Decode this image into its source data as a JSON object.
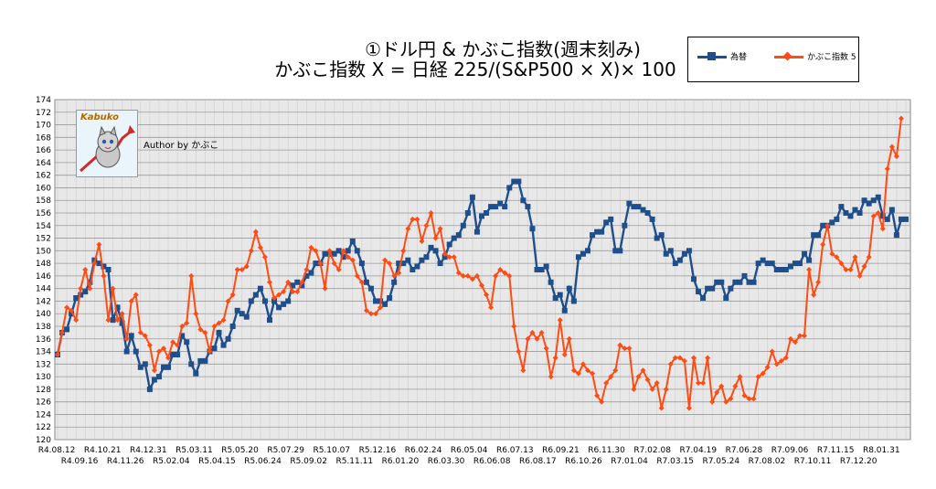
{
  "chart_data": {
    "type": "line",
    "title_line1": "①ドル円 & かぶこ指数(週末刻み)",
    "title_line2": "かぶこ指数 X = 日経 225/(S&P500 × X)× 100",
    "author": "Author by かぶこ",
    "logo_text": "Kabuko",
    "ylim": [
      120,
      174
    ],
    "ystep": 2,
    "grid": true,
    "legend_placement": "top-right",
    "colors": {
      "usdjpy": "#1f4e8c",
      "kabuko": "#ff4b14",
      "grid": "#b0b0b0",
      "plot_bg": "#e8e8e8"
    },
    "x_tick_labels_upper": [
      "R4.08.12",
      "R4.10.21",
      "R4.12.31",
      "R5.03.11",
      "R5.05.20",
      "R5.07.29",
      "R5.10.07",
      "R5.12.16",
      "R6.02.24",
      "R6.05.04",
      "R6.07.13",
      "R6.09.21",
      "R6.11.30",
      "R7.02.08",
      "R7.04.19",
      "R7.06.28",
      "R7.09.06",
      "R7.11.15",
      "R8.01.31"
    ],
    "x_tick_labels_lower": [
      "R4.09.16",
      "R4.11.26",
      "R5.02.04",
      "R5.04.15",
      "R5.06.24",
      "R5.09.02",
      "R5.11.11",
      "R6.01.20",
      "R6.03.30",
      "R6.06.08",
      "R6.08.17",
      "R6.10.26",
      "R7.01.04",
      "R7.03.15",
      "R7.05.24",
      "R7.08.02",
      "R7.10.11",
      "R7.12.20"
    ],
    "series": [
      {
        "name": "為替",
        "marker": "square",
        "values": [
          133.5,
          137,
          137.5,
          140,
          142.5,
          143,
          143.5,
          145,
          148.5,
          148,
          147.5,
          147,
          139,
          141,
          138.5,
          134,
          136.5,
          134,
          131.5,
          132,
          128,
          129.5,
          130,
          131.5,
          131.5,
          133.5,
          133.5,
          136.5,
          135.5,
          132,
          130.5,
          132.5,
          132.5,
          134,
          134.5,
          137,
          135,
          136,
          138,
          140.5,
          140,
          139.5,
          142,
          143,
          144,
          142,
          139,
          142,
          141,
          141.5,
          142,
          144.5,
          145,
          144.5,
          146,
          146.5,
          148,
          148,
          149.5,
          149.5,
          149.5,
          150,
          149,
          150,
          151.5,
          150,
          148,
          145,
          144,
          142,
          142,
          141.5,
          142.5,
          145,
          148,
          148,
          148.5,
          147,
          147.5,
          148.5,
          149,
          150.5,
          150,
          148,
          149,
          151,
          152,
          152.5,
          154,
          156,
          158.5,
          153,
          155.5,
          156,
          157,
          157,
          157.5,
          157,
          160,
          161,
          161,
          158,
          157,
          153.5,
          147,
          147,
          147.5,
          145,
          142.5,
          143,
          140.5,
          144,
          142,
          149,
          149.5,
          150,
          152.5,
          153,
          153,
          154.5,
          155,
          150,
          150,
          154,
          157.5,
          157,
          157,
          156.5,
          156,
          155,
          152,
          152.5,
          149.5,
          150,
          148,
          148.5,
          149.5,
          150,
          145.5,
          143.5,
          142.5,
          144,
          144,
          145,
          145,
          142.5,
          144,
          145,
          145,
          146,
          145,
          145,
          148,
          148.5,
          148,
          148,
          147,
          147,
          147,
          147.5,
          148,
          148,
          149.5,
          148.5,
          152.5,
          152.5,
          154,
          154,
          154.5,
          155,
          157,
          156,
          155.5,
          156.5,
          156,
          158,
          157.5,
          158,
          158.5,
          155.5,
          155,
          156.5,
          152.5,
          155,
          155
        ]
      },
      {
        "name": "かぶこ指数 5",
        "marker": "diamond",
        "values": [
          133.5,
          137,
          141,
          140.5,
          139,
          144,
          147,
          144,
          148,
          151,
          146,
          139,
          144,
          139,
          140,
          136,
          142,
          143,
          137,
          136.5,
          135,
          131,
          134,
          134.5,
          133,
          135.5,
          135,
          138,
          138.5,
          146,
          140,
          137.5,
          137,
          134,
          138,
          138.5,
          139,
          142,
          143,
          147,
          147,
          147.5,
          150,
          153,
          150.5,
          149,
          145,
          142.5,
          143,
          143.5,
          145,
          143.5,
          143.5,
          145,
          147,
          150.5,
          150,
          148,
          144,
          150,
          148,
          147,
          150,
          149,
          148.5,
          146,
          145,
          140.5,
          140,
          140,
          141,
          148.5,
          148,
          146,
          146.5,
          150,
          153.5,
          155,
          155,
          151.5,
          154,
          156,
          152,
          153.5,
          149.5,
          149,
          149,
          146.5,
          146,
          146,
          145.5,
          146,
          144.5,
          143,
          141,
          146,
          147,
          146.5,
          146,
          138,
          134,
          131,
          136,
          137,
          136,
          137,
          134.5,
          130,
          133,
          139,
          133.5,
          136,
          131,
          130.5,
          132,
          131,
          130.5,
          127,
          126,
          129,
          130,
          131,
          135,
          134.5,
          134.5,
          128,
          130,
          131,
          129.5,
          128,
          129,
          125,
          128,
          132,
          133,
          133,
          132.5,
          125,
          133,
          129,
          129,
          133,
          126,
          127.5,
          128.5,
          126,
          126.5,
          128.5,
          130,
          127,
          126.5,
          126.5,
          130,
          130.5,
          131.5,
          134,
          132,
          132.5,
          133,
          136,
          135.5,
          136.5,
          136.5,
          147,
          143,
          145,
          151,
          154,
          149.5,
          149,
          148,
          147,
          147,
          149,
          146,
          147.5,
          149,
          155.5,
          156,
          153.5,
          163,
          166.5,
          165,
          171
        ]
      }
    ]
  }
}
